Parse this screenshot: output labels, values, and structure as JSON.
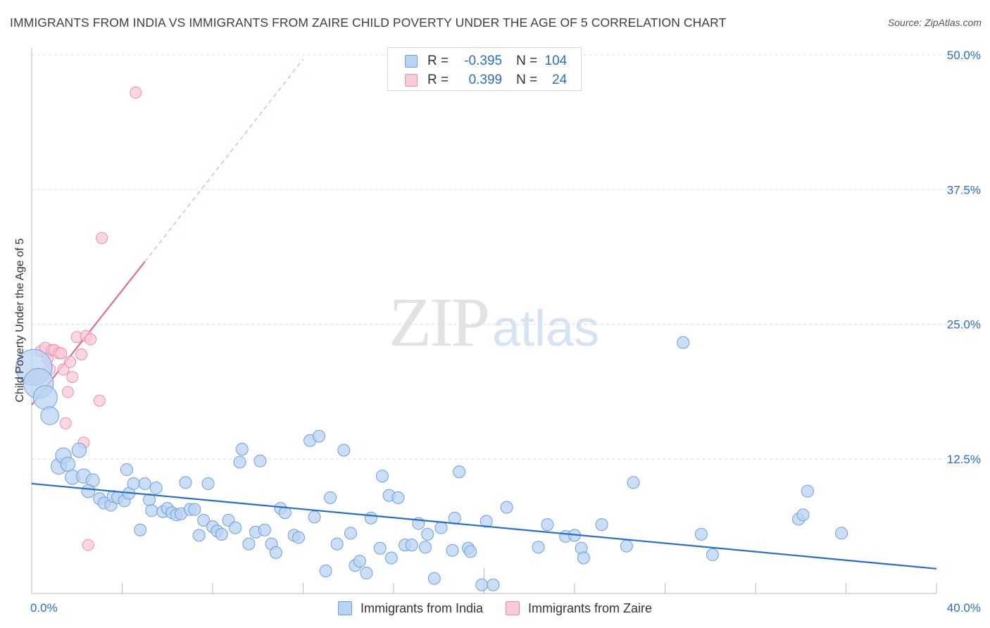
{
  "header": {
    "title": "IMMIGRANTS FROM INDIA VS IMMIGRANTS FROM ZAIRE CHILD POVERTY UNDER THE AGE OF 5 CORRELATION CHART",
    "source": "Source: ZipAtlas.com"
  },
  "watermark": {
    "zip": "ZIP",
    "atlas": "atlas"
  },
  "colors": {
    "india_fill": "#b9d3f3",
    "india_stroke": "#6d9fdc",
    "india_line": "#2a6dc7",
    "zaire_fill": "#f9cad9",
    "zaire_stroke": "#ea8eaf",
    "zaire_line": "#e06b95",
    "accent_text": "#2a6dc7",
    "grid": "#dddddd"
  },
  "legend": {
    "rows": [
      {
        "r_label": "R =",
        "r_value": "-0.395",
        "n_label": "N =",
        "n_value": "104"
      },
      {
        "r_label": "R =",
        "r_value": "0.399",
        "n_label": "N =",
        "n_value": "24"
      }
    ]
  },
  "bottom_legend": {
    "india": "Immigrants from India",
    "zaire": "Immigrants from Zaire"
  },
  "chart_data": {
    "type": "scatter",
    "title": "IMMIGRANTS FROM INDIA VS IMMIGRANTS FROM ZAIRE CHILD POVERTY UNDER THE AGE OF 5 CORRELATION CHART",
    "xlabel": "",
    "ylabel": "Child Poverty Under the Age of 5",
    "xlim": [
      0,
      40
    ],
    "ylim": [
      0,
      50
    ],
    "x_tick_labels": [
      "0.0%",
      "40.0%"
    ],
    "y_ticks": [
      12.5,
      25.0,
      37.5,
      50.0
    ],
    "y_tick_labels": [
      "12.5%",
      "25.0%",
      "37.5%",
      "50.0%"
    ],
    "grid": true,
    "legend_position": "top-center",
    "series": [
      {
        "name": "Immigrants from India",
        "trend": {
          "x": [
            0,
            40
          ],
          "y": [
            10.2,
            2.3
          ]
        },
        "points": [
          [
            0.1,
            21.0,
            3
          ],
          [
            0.3,
            19.5,
            2.5
          ],
          [
            0.6,
            18.2,
            2
          ],
          [
            0.8,
            16.5,
            1.5
          ],
          [
            1.2,
            11.8,
            1.3
          ],
          [
            1.4,
            12.8,
            1.3
          ],
          [
            1.6,
            12.0,
            1.2
          ],
          [
            1.8,
            10.8,
            1.2
          ],
          [
            2.1,
            13.3,
            1.2
          ],
          [
            2.3,
            10.9,
            1.2
          ],
          [
            2.7,
            10.5,
            1.1
          ],
          [
            2.5,
            9.5,
            1.1
          ],
          [
            3.0,
            8.8,
            1
          ],
          [
            3.2,
            8.4,
            1
          ],
          [
            3.5,
            8.2,
            1
          ],
          [
            3.6,
            9.0,
            1
          ],
          [
            3.8,
            8.9,
            1
          ],
          [
            4.1,
            8.6,
            1
          ],
          [
            4.2,
            11.5,
            1
          ],
          [
            4.3,
            9.3,
            1
          ],
          [
            4.5,
            10.2,
            1
          ],
          [
            4.8,
            5.9,
            1
          ],
          [
            5.0,
            10.2,
            1
          ],
          [
            5.2,
            8.7,
            1
          ],
          [
            5.3,
            7.7,
            1
          ],
          [
            5.5,
            9.8,
            1
          ],
          [
            5.8,
            7.6,
            1
          ],
          [
            6.0,
            7.9,
            1
          ],
          [
            6.2,
            7.5,
            1
          ],
          [
            6.4,
            7.3,
            1
          ],
          [
            6.6,
            7.4,
            1
          ],
          [
            6.8,
            10.3,
            1
          ],
          [
            7.0,
            7.8,
            1
          ],
          [
            7.2,
            7.8,
            1
          ],
          [
            7.4,
            5.4,
            1
          ],
          [
            7.6,
            6.8,
            1
          ],
          [
            7.8,
            10.2,
            1
          ],
          [
            8.0,
            6.2,
            1
          ],
          [
            8.2,
            5.8,
            1
          ],
          [
            8.4,
            5.5,
            1
          ],
          [
            8.7,
            6.8,
            1
          ],
          [
            9.0,
            6.1,
            1
          ],
          [
            9.2,
            12.2,
            1
          ],
          [
            9.3,
            13.4,
            1
          ],
          [
            9.6,
            4.6,
            1
          ],
          [
            9.9,
            5.7,
            1
          ],
          [
            10.1,
            12.3,
            1
          ],
          [
            10.3,
            5.9,
            1
          ],
          [
            10.6,
            4.6,
            1
          ],
          [
            10.8,
            3.8,
            1
          ],
          [
            11.0,
            7.9,
            1
          ],
          [
            11.2,
            7.5,
            1
          ],
          [
            11.6,
            5.4,
            1
          ],
          [
            11.8,
            5.2,
            1
          ],
          [
            12.3,
            14.2,
            1
          ],
          [
            12.5,
            7.1,
            1
          ],
          [
            12.7,
            14.6,
            1
          ],
          [
            13.0,
            2.1,
            1
          ],
          [
            13.2,
            8.9,
            1
          ],
          [
            13.5,
            4.6,
            1
          ],
          [
            13.8,
            13.3,
            1
          ],
          [
            14.1,
            5.6,
            1
          ],
          [
            14.3,
            2.6,
            1
          ],
          [
            14.5,
            3.0,
            1
          ],
          [
            14.8,
            1.9,
            1
          ],
          [
            15.0,
            7.0,
            1
          ],
          [
            15.4,
            4.2,
            1
          ],
          [
            15.5,
            10.9,
            1
          ],
          [
            15.8,
            9.1,
            1
          ],
          [
            15.9,
            3.3,
            1
          ],
          [
            16.2,
            8.9,
            1
          ],
          [
            16.5,
            4.5,
            1
          ],
          [
            16.8,
            4.5,
            1
          ],
          [
            17.1,
            6.5,
            1
          ],
          [
            17.4,
            4.3,
            1
          ],
          [
            17.5,
            5.5,
            1
          ],
          [
            17.8,
            1.4,
            1
          ],
          [
            18.1,
            6.1,
            1
          ],
          [
            18.6,
            4.0,
            1
          ],
          [
            18.7,
            7.0,
            1
          ],
          [
            18.9,
            11.3,
            1
          ],
          [
            19.3,
            4.2,
            1
          ],
          [
            19.4,
            3.9,
            1
          ],
          [
            19.9,
            0.8,
            1
          ],
          [
            20.1,
            6.7,
            1
          ],
          [
            20.4,
            0.8,
            1
          ],
          [
            21.0,
            8.0,
            1
          ],
          [
            22.4,
            4.3,
            1
          ],
          [
            22.8,
            6.4,
            1
          ],
          [
            23.6,
            5.3,
            1
          ],
          [
            24.0,
            5.4,
            1
          ],
          [
            24.3,
            4.2,
            1
          ],
          [
            24.4,
            3.3,
            1
          ],
          [
            25.2,
            6.4,
            1
          ],
          [
            26.3,
            4.4,
            1
          ],
          [
            26.6,
            10.3,
            1
          ],
          [
            28.8,
            23.3,
            1
          ],
          [
            29.6,
            5.5,
            1
          ],
          [
            30.1,
            3.6,
            1
          ],
          [
            33.9,
            6.9,
            1
          ],
          [
            34.1,
            7.3,
            1
          ],
          [
            34.3,
            9.5,
            1
          ],
          [
            35.8,
            5.6,
            1
          ],
          [
            35.0,
            2.5,
            0
          ]
        ]
      },
      {
        "name": "Immigrants from Zaire",
        "trend": {
          "x": [
            0,
            5
          ],
          "y": [
            17.5,
            30.8
          ]
        },
        "trend_extension": {
          "x": [
            5,
            12
          ],
          "y": [
            30.8,
            49.6
          ]
        },
        "points": [
          [
            0.1,
            20.0,
            1
          ],
          [
            0.3,
            20.4,
            1
          ],
          [
            0.4,
            22.5,
            1
          ],
          [
            0.6,
            22.8,
            1
          ],
          [
            0.7,
            21.8,
            1
          ],
          [
            0.8,
            20.8,
            1
          ],
          [
            0.9,
            22.6,
            1
          ],
          [
            1.0,
            22.6,
            1
          ],
          [
            1.2,
            22.3,
            1
          ],
          [
            1.3,
            22.3,
            1
          ],
          [
            1.4,
            20.8,
            1
          ],
          [
            1.5,
            15.8,
            1
          ],
          [
            1.6,
            18.7,
            1
          ],
          [
            1.7,
            21.5,
            1
          ],
          [
            1.8,
            20.1,
            1
          ],
          [
            2.0,
            23.8,
            1
          ],
          [
            2.2,
            22.2,
            1
          ],
          [
            2.3,
            14.0,
            1
          ],
          [
            2.4,
            23.9,
            1
          ],
          [
            2.5,
            4.5,
            1
          ],
          [
            2.6,
            23.6,
            1
          ],
          [
            3.0,
            17.9,
            1
          ],
          [
            3.1,
            33.0,
            1
          ],
          [
            4.6,
            46.5,
            1
          ]
        ]
      }
    ]
  }
}
